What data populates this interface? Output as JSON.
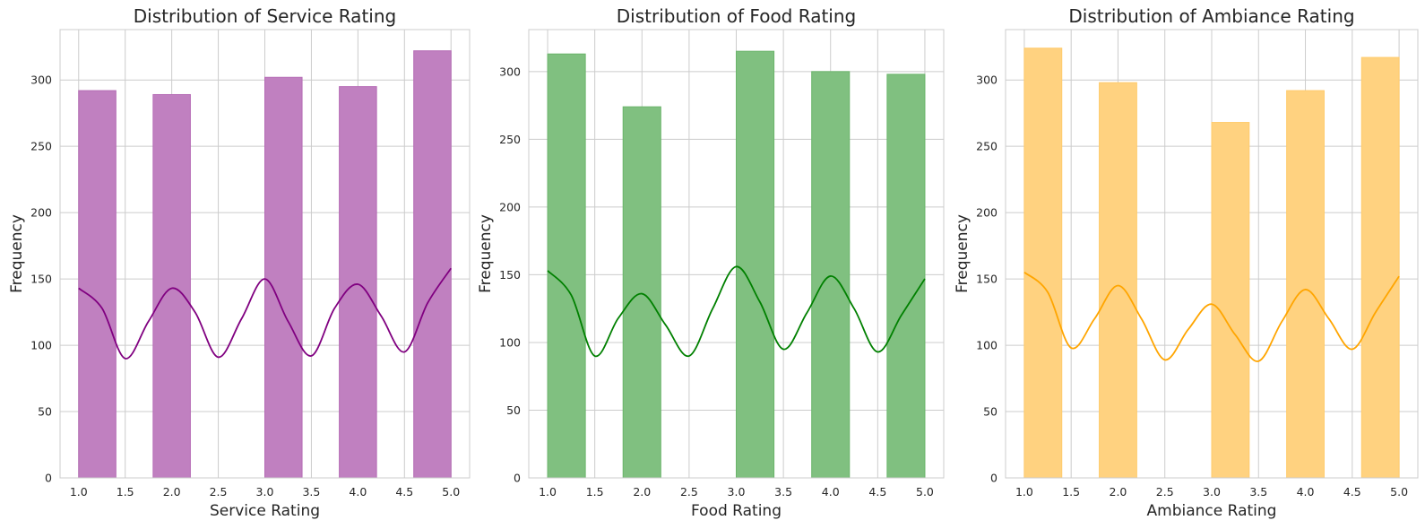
{
  "chart_data": [
    {
      "type": "bar",
      "title": "Distribution of Service Rating",
      "xlabel": "Service Rating",
      "ylabel": "Frequency",
      "color": "#800080",
      "bins": [
        [
          1.0,
          1.4
        ],
        [
          1.8,
          2.2
        ],
        [
          3.0,
          3.4
        ],
        [
          3.8,
          4.2
        ],
        [
          4.6,
          5.0
        ]
      ],
      "values": [
        292,
        289,
        302,
        295,
        322
      ],
      "kde": {
        "x": [
          1.0,
          1.25,
          1.5,
          1.75,
          2.0,
          2.25,
          2.5,
          2.75,
          3.0,
          3.25,
          3.5,
          3.75,
          4.0,
          4.25,
          4.5,
          4.75,
          5.0
        ],
        "y": [
          143,
          128,
          90,
          118,
          143,
          125,
          91,
          120,
          150,
          118,
          92,
          128,
          146,
          122,
          95,
          132,
          158
        ]
      },
      "xticks": [
        "1.0",
        "1.5",
        "2.0",
        "2.5",
        "3.0",
        "3.5",
        "4.0",
        "4.5",
        "5.0"
      ],
      "yticks": [
        "0",
        "50",
        "100",
        "150",
        "200",
        "250",
        "300"
      ],
      "xlim": [
        0.8,
        5.2
      ],
      "ylim": [
        0,
        338
      ],
      "grid": true
    },
    {
      "type": "bar",
      "title": "Distribution of Food Rating",
      "xlabel": "Food Rating",
      "ylabel": "Frequency",
      "color": "#008000",
      "bins": [
        [
          1.0,
          1.4
        ],
        [
          1.8,
          2.2
        ],
        [
          3.0,
          3.4
        ],
        [
          3.8,
          4.2
        ],
        [
          4.6,
          5.0
        ]
      ],
      "values": [
        313,
        274,
        315,
        300,
        298
      ],
      "kde": {
        "x": [
          1.0,
          1.25,
          1.5,
          1.75,
          2.0,
          2.25,
          2.5,
          2.75,
          3.0,
          3.25,
          3.5,
          3.75,
          4.0,
          4.25,
          4.5,
          4.75,
          5.0
        ],
        "y": [
          153,
          135,
          90,
          118,
          136,
          113,
          90,
          125,
          156,
          130,
          95,
          122,
          149,
          125,
          93,
          120,
          147
        ]
      },
      "xticks": [
        "1.0",
        "1.5",
        "2.0",
        "2.5",
        "3.0",
        "3.5",
        "4.0",
        "4.5",
        "5.0"
      ],
      "yticks": [
        "0",
        "50",
        "100",
        "150",
        "200",
        "250",
        "300"
      ],
      "xlim": [
        0.8,
        5.2
      ],
      "ylim": [
        0,
        331
      ],
      "grid": true
    },
    {
      "type": "bar",
      "title": "Distribution of Ambiance Rating",
      "xlabel": "Ambiance Rating",
      "ylabel": "Frequency",
      "color": "#ffa500",
      "bins": [
        [
          1.0,
          1.4
        ],
        [
          1.8,
          2.2
        ],
        [
          3.0,
          3.4
        ],
        [
          3.8,
          4.2
        ],
        [
          4.6,
          5.0
        ]
      ],
      "values": [
        324,
        298,
        268,
        292,
        317
      ],
      "kde": {
        "x": [
          1.0,
          1.25,
          1.5,
          1.75,
          2.0,
          2.25,
          2.5,
          2.75,
          3.0,
          3.25,
          3.5,
          3.75,
          4.0,
          4.25,
          4.5,
          4.75,
          5.0
        ],
        "y": [
          155,
          140,
          98,
          120,
          145,
          120,
          89,
          112,
          131,
          108,
          88,
          118,
          142,
          120,
          97,
          125,
          152
        ]
      },
      "xticks": [
        "1.0",
        "1.5",
        "2.0",
        "2.5",
        "3.0",
        "3.5",
        "4.0",
        "4.5",
        "5.0"
      ],
      "yticks": [
        "0",
        "50",
        "100",
        "150",
        "200",
        "250",
        "300"
      ],
      "xlim": [
        0.8,
        5.2
      ],
      "ylim": [
        0,
        338
      ],
      "grid": true
    }
  ]
}
